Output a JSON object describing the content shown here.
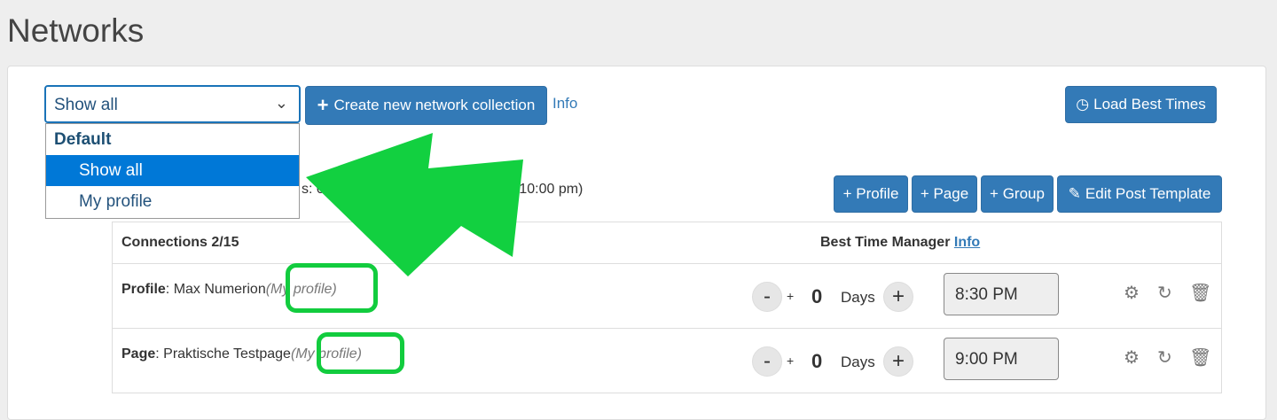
{
  "page": {
    "title": "Networks"
  },
  "toolbar": {
    "select_value": "Show all",
    "create_label": "Create new network collection",
    "info_label": "Info",
    "load_best_times": "Load Best Times"
  },
  "dropdown": {
    "group": "Default",
    "options": [
      "Show all",
      "My profile"
    ],
    "selected": "Show all"
  },
  "partial_text": {
    "left": "s: 0",
    "right": "-10:00 pm)"
  },
  "actions": {
    "profile": "+ Profile",
    "page": "+ Page",
    "group": "+ Group",
    "edit_template": "Edit Post Template"
  },
  "table": {
    "connections": "Connections 2/15",
    "best_time_manager": "Best Time Manager",
    "info": "Info",
    "rows": [
      {
        "type": "Profile",
        "name": ": Max Numerion",
        "tag": "(My profile)",
        "days": "0",
        "days_label": "Days",
        "time": "8:30 PM"
      },
      {
        "type": "Page",
        "name": ": Praktische Testpage",
        "tag": "(My profile)",
        "days": "0",
        "days_label": "Days",
        "time": "9:00 PM"
      }
    ]
  },
  "colors": {
    "primary": "#337ab7",
    "highlight": "#0078d7",
    "annotation": "#12cc3e"
  }
}
